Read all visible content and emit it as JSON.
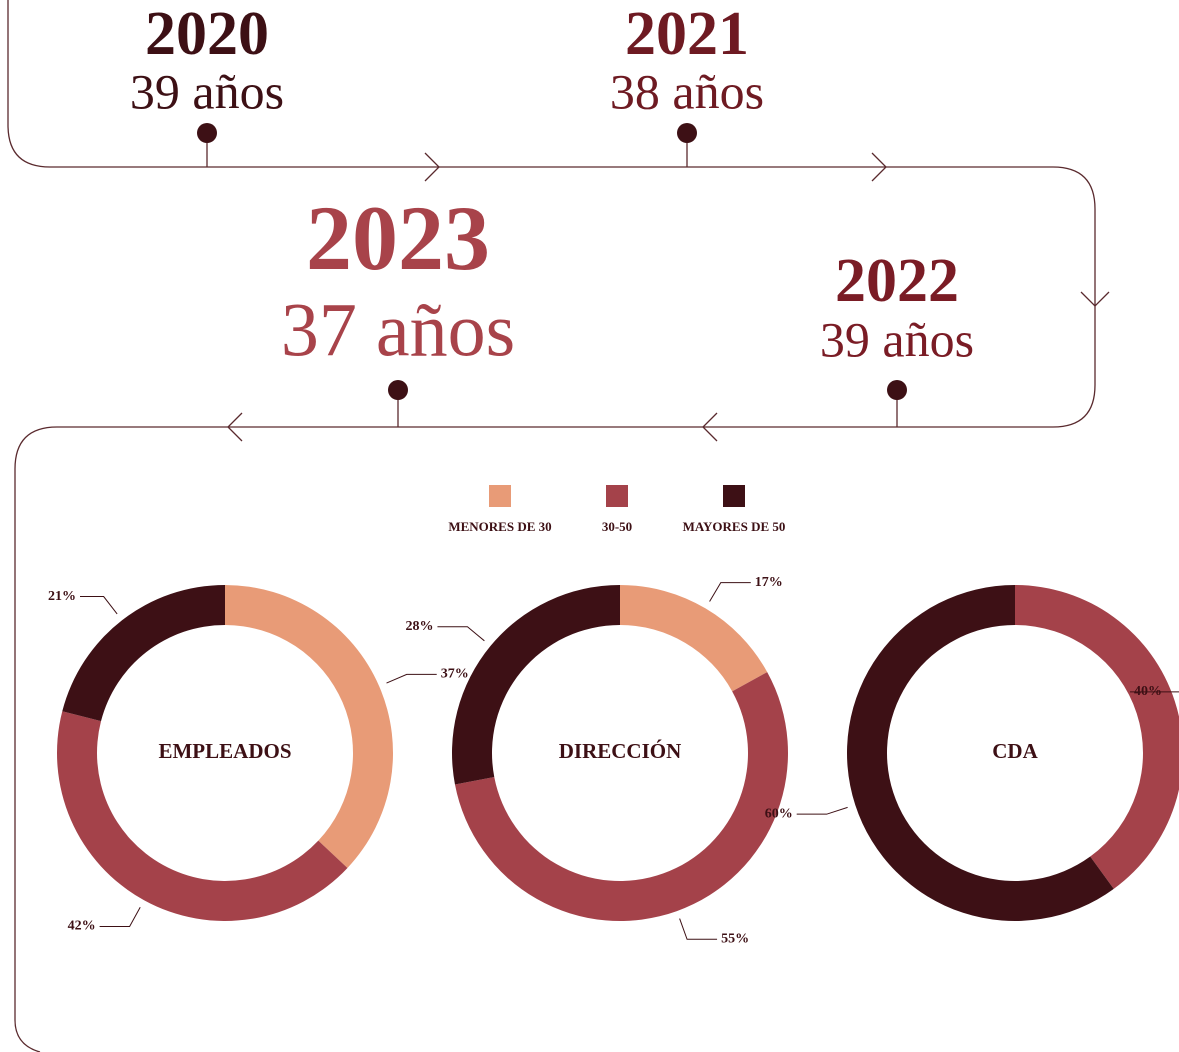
{
  "timeline": [
    {
      "year": "2020",
      "age": "39 años"
    },
    {
      "year": "2021",
      "age": "38 años"
    },
    {
      "year": "2022",
      "age": "39 años"
    },
    {
      "year": "2023",
      "age": "37 años"
    }
  ],
  "chart_data": {
    "type": "donut",
    "categories": [
      "MENORES DE 30",
      "30-50",
      "MAYORES DE 50"
    ],
    "colors": [
      "#e89b77",
      "#a4424a",
      "#3d1015"
    ],
    "series": [
      {
        "name": "EMPLEADOS",
        "values": [
          37,
          42,
          21
        ],
        "value_labels": [
          "37%",
          "42%",
          "21%"
        ]
      },
      {
        "name": "DIRECCIÓN",
        "values": [
          17,
          55,
          28
        ],
        "value_labels": [
          "17%",
          "55%",
          "28%"
        ]
      },
      {
        "name": "CDA",
        "values": [
          null,
          40,
          60
        ],
        "value_labels": [
          null,
          "40%",
          "60%"
        ]
      }
    ]
  }
}
